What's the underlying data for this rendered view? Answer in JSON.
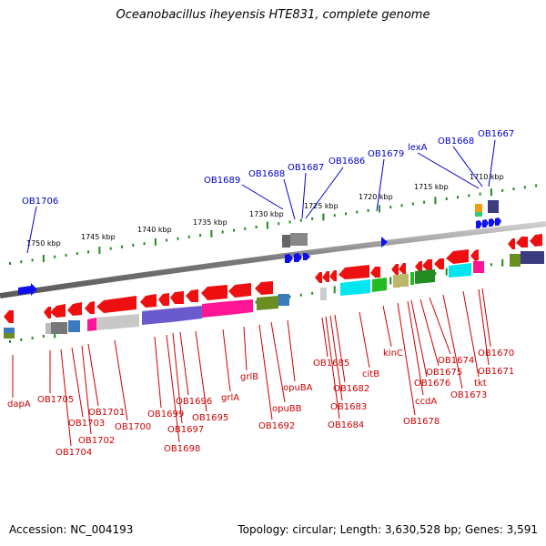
{
  "title": "Oceanobacillus iheyensis HTE831, complete genome",
  "footer": {
    "accession": "Accession: NC_004193",
    "summary": "Topology: circular; Length: 3,630,528 bp; Genes: 3,591"
  },
  "colors": {
    "top_label": "#0000cc",
    "bottom_label": "#cc0000",
    "tick": "#228822",
    "backbone": "#888888",
    "forward_arrow": "#1010ee",
    "reverse_arrow": "#ee1010"
  },
  "scale_labels": [
    "1750 kbp",
    "1745 kbp",
    "1740 kbp",
    "1735 kbp",
    "1730 kbp",
    "1725 kbp",
    "1720 kbp",
    "1715 kbp",
    "1710 kbp"
  ],
  "top_genes": [
    "OB1706",
    "OB1689",
    "OB1688",
    "OB1687",
    "OB1686",
    "OB1679",
    "lexA",
    "OB1668",
    "OB1667"
  ],
  "bottom_genes": [
    "dapA",
    "OB1705",
    "OB1704",
    "OB1703",
    "OB1702",
    "OB1701",
    "OB1700",
    "OB1699",
    "OB1698",
    "OB1697",
    "OB1696",
    "OB1695",
    "grlA",
    "grlB",
    "OB1692",
    "opuBB",
    "opuBA",
    "OB1685",
    "OB1684",
    "OB1683",
    "OB1682",
    "citB",
    "kinC",
    "OB1678",
    "ccdA",
    "OB1676",
    "OB1675",
    "OB1674",
    "OB1673",
    "tkt",
    "OB1671",
    "OB1670"
  ]
}
